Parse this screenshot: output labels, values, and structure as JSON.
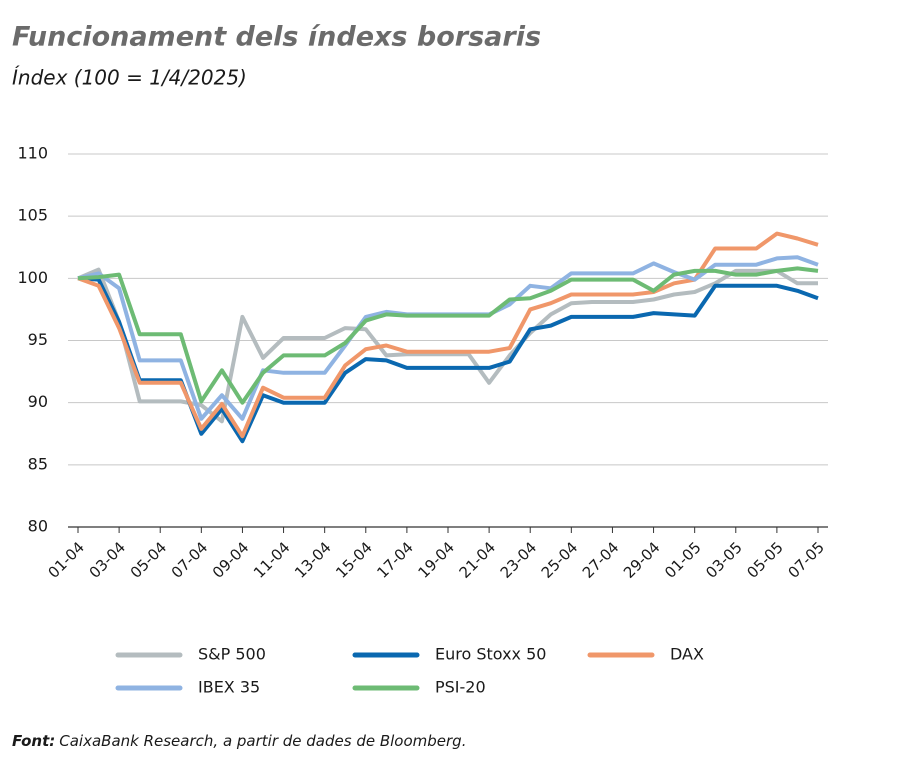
{
  "chart_data": {
    "type": "line",
    "title": "Funcionament dels índexs borsaris",
    "subtitle": "Índex (100 = 1/4/2025)",
    "categories": [
      "01-04",
      null,
      "03-04",
      null,
      "05-04",
      null,
      "07-04",
      null,
      "09-04",
      null,
      "11-04",
      null,
      "13-04",
      null,
      "15-04",
      null,
      "17-04",
      null,
      "19-04",
      null,
      "21-04",
      null,
      "23-04",
      null,
      "25-04",
      null,
      "27-04",
      null,
      "29-04",
      null,
      "01-05",
      null,
      "03-05",
      null,
      "05-05",
      null,
      "07-05"
    ],
    "series": [
      {
        "name": "S&P 500",
        "color": "#b4bcbf",
        "values": [
          100,
          100.7,
          96.5,
          90.1,
          90.1,
          90.1,
          89.8,
          88.5,
          96.9,
          93.6,
          95.2,
          95.2,
          95.2,
          96.0,
          95.9,
          93.8,
          93.9,
          93.9,
          93.9,
          93.9,
          91.6,
          93.8,
          95.6,
          97.1,
          98.0,
          98.1,
          98.1,
          98.1,
          98.3,
          98.7,
          98.9,
          99.6,
          100.6,
          100.6,
          100.6,
          99.6,
          99.6
        ]
      },
      {
        "name": "Euro Stoxx 50",
        "color": "#0a68b0",
        "values": [
          100,
          99.9,
          96.5,
          91.8,
          91.8,
          91.8,
          87.5,
          89.5,
          86.9,
          90.6,
          90.0,
          90.0,
          90.0,
          92.4,
          93.5,
          93.4,
          92.8,
          92.8,
          92.8,
          92.8,
          92.8,
          93.3,
          95.9,
          96.2,
          96.9,
          96.9,
          96.9,
          96.9,
          97.2,
          97.1,
          97.0,
          99.4,
          99.4,
          99.4,
          99.4,
          99.0,
          98.4
        ]
      },
      {
        "name": "DAX",
        "color": "#f0976a",
        "values": [
          100,
          99.4,
          96.0,
          91.6,
          91.6,
          91.6,
          87.9,
          89.9,
          87.3,
          91.2,
          90.4,
          90.4,
          90.4,
          93.0,
          94.3,
          94.6,
          94.1,
          94.1,
          94.1,
          94.1,
          94.1,
          94.4,
          97.5,
          98.0,
          98.7,
          98.7,
          98.7,
          98.7,
          98.9,
          99.6,
          99.9,
          102.4,
          102.4,
          102.4,
          103.6,
          103.2,
          102.7
        ]
      },
      {
        "name": "IBEX 35",
        "color": "#8fb3e2",
        "values": [
          100,
          100.4,
          99.2,
          93.4,
          93.4,
          93.4,
          88.7,
          90.6,
          88.7,
          92.6,
          92.4,
          92.4,
          92.4,
          94.6,
          96.9,
          97.3,
          97.1,
          97.1,
          97.1,
          97.1,
          97.1,
          97.9,
          99.4,
          99.2,
          100.4,
          100.4,
          100.4,
          100.4,
          101.2,
          100.5,
          99.9,
          101.1,
          101.1,
          101.1,
          101.6,
          101.7,
          101.1
        ]
      },
      {
        "name": "PSI-20",
        "color": "#6dbb74",
        "values": [
          100,
          100.1,
          100.3,
          95.5,
          95.5,
          95.5,
          90.1,
          92.6,
          90.0,
          92.4,
          93.8,
          93.8,
          93.8,
          94.8,
          96.6,
          97.1,
          97.0,
          97.0,
          97.0,
          97.0,
          97.0,
          98.3,
          98.4,
          99.0,
          99.9,
          99.9,
          99.9,
          99.9,
          99.0,
          100.3,
          100.6,
          100.6,
          100.3,
          100.3,
          100.6,
          100.8,
          100.6
        ]
      }
    ],
    "ylim": [
      80,
      110
    ],
    "yticks": [
      80,
      85,
      90,
      95,
      100,
      105,
      110
    ],
    "grid": true,
    "source": {
      "label": "Font:",
      "text": "CaixaBank Research, a partir de dades de Bloomberg."
    }
  }
}
